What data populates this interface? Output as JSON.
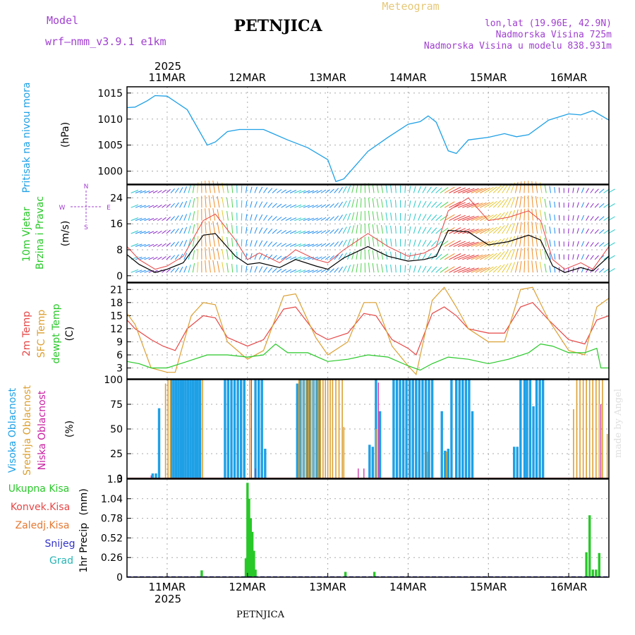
{
  "header": {
    "model_label": "Model",
    "model_name": "wrf–nmm_v3.9.1  e1km",
    "station": "PETNJICA",
    "title": "Meteogram",
    "lonlat": "lon,lat (19.96E, 42.9N)",
    "altitude": "Nadmorska Visina 725m",
    "model_altitude": "Nadmorska Visina u modelu 838.931m",
    "watermark": "made by Angel",
    "footer_station": "PETNJICA"
  },
  "x_axis": {
    "year": "2025",
    "day_labels": [
      "11MAR",
      "12MAR",
      "13MAR",
      "14MAR",
      "15MAR",
      "16MAR"
    ],
    "start_day": 10.5,
    "end_day": 16.5,
    "major_ticks": [
      11,
      12,
      13,
      14,
      15,
      16
    ]
  },
  "colors": {
    "pressure": "#1ea0e6",
    "temp2m": "#e64646",
    "sfc": "#dca032",
    "dewpt": "#28c828",
    "high_cloud": "#1ea0e6",
    "mid_cloud": "#dca032",
    "low_cloud": "#c81ea0",
    "precip": "#28c828",
    "snow": "#0000c8",
    "frame": "#000000",
    "grid": "#aaaaaa",
    "title_orange": "#e6c878",
    "purple": "#a040d0"
  },
  "chart_data": [
    {
      "type": "line",
      "title": "",
      "ylabel": "Pritisak na nivou mora",
      "unit": "(hPa)",
      "ylim": [
        997.5,
        1016.2
      ],
      "yticks": [
        1000,
        1005,
        1010,
        1015
      ],
      "series": [
        {
          "name": "Pritisak na nivou mora",
          "x": [
            10.5,
            10.6,
            10.75,
            10.85,
            11.0,
            11.25,
            11.5,
            11.6,
            11.75,
            11.9,
            12.0,
            12.2,
            12.5,
            12.75,
            13.0,
            13.1,
            13.2,
            13.5,
            13.75,
            14.0,
            14.15,
            14.25,
            14.35,
            14.5,
            14.6,
            14.75,
            15.0,
            15.2,
            15.35,
            15.5,
            15.75,
            16.0,
            16.15,
            16.3,
            16.5
          ],
          "values": [
            1012.2,
            1012.3,
            1013.5,
            1014.5,
            1014.4,
            1011.8,
            1005.0,
            1005.6,
            1007.6,
            1008.0,
            1008.0,
            1008.0,
            1006.0,
            1004.5,
            1002.2,
            998.0,
            998.5,
            1003.8,
            1006.5,
            1009.0,
            1009.5,
            1010.6,
            1009.4,
            1003.9,
            1003.4,
            1006.0,
            1006.5,
            1007.2,
            1006.6,
            1007.0,
            1009.8,
            1011.0,
            1010.8,
            1011.6,
            1009.8
          ]
        }
      ]
    },
    {
      "type": "line",
      "title": "",
      "ylabel": "10m Vjetar Brzina i Pravac",
      "unit": "(m/s)",
      "ylim": [
        -2,
        28
      ],
      "yticks": [
        0,
        8,
        16,
        24
      ],
      "direction_legend": [
        "N",
        "W",
        "E",
        "S"
      ],
      "series": [
        {
          "name": "10m Vjetar Brzina",
          "x": [
            10.5,
            10.65,
            10.85,
            11.0,
            11.2,
            11.45,
            11.6,
            11.85,
            12.0,
            12.15,
            12.4,
            12.6,
            12.85,
            13.0,
            13.2,
            13.5,
            13.75,
            14.0,
            14.2,
            14.35,
            14.5,
            14.75,
            15.0,
            15.25,
            15.5,
            15.65,
            15.8,
            15.95,
            16.15,
            16.3,
            16.5
          ],
          "values": [
            6.5,
            3.5,
            1.0,
            2.0,
            4.0,
            12.5,
            13.0,
            6.0,
            3.5,
            4.0,
            2.5,
            5.0,
            3.0,
            2.0,
            5.5,
            9.0,
            6.0,
            4.5,
            5.0,
            6.0,
            14.0,
            13.5,
            9.5,
            10.5,
            12.5,
            11.0,
            3.0,
            1.0,
            2.5,
            1.5,
            6.0
          ]
        },
        {
          "name": "Udari",
          "x": [
            10.5,
            10.65,
            10.85,
            11.0,
            11.2,
            11.45,
            11.6,
            11.85,
            12.0,
            12.15,
            12.4,
            12.6,
            12.85,
            13.0,
            13.2,
            13.5,
            13.75,
            14.0,
            14.2,
            14.35,
            14.5,
            14.75,
            15.0,
            15.25,
            15.5,
            15.65,
            15.8,
            15.95,
            16.15,
            16.3,
            16.5
          ],
          "values": [
            9.0,
            5.0,
            2.0,
            3.0,
            6.0,
            17.0,
            19.0,
            11.0,
            5.0,
            7.0,
            4.0,
            8.0,
            5.0,
            4.0,
            8.0,
            13.0,
            9.0,
            6.0,
            7.0,
            9.0,
            20.0,
            24.0,
            17.0,
            18.0,
            20.0,
            17.0,
            5.0,
            2.0,
            4.0,
            2.0,
            9.0
          ]
        }
      ]
    },
    {
      "type": "line",
      "title": "",
      "ylabel": "2m Temp / SFC Temp / dewpt Temp",
      "unit": "(C)",
      "ylim": [
        0.5,
        22.5
      ],
      "yticks": [
        3,
        6,
        9,
        12,
        15,
        18,
        21
      ],
      "series": [
        {
          "name": "2m Temp",
          "x": [
            10.5,
            10.6,
            10.8,
            10.95,
            11.1,
            11.25,
            11.45,
            11.6,
            11.75,
            12.0,
            12.2,
            12.45,
            12.6,
            12.85,
            13.0,
            13.25,
            13.45,
            13.6,
            13.8,
            14.0,
            14.1,
            14.3,
            14.45,
            14.6,
            14.75,
            15.0,
            15.2,
            15.4,
            15.55,
            15.75,
            16.0,
            16.2,
            16.35,
            16.5
          ],
          "values": [
            14.0,
            12.0,
            9.5,
            8.0,
            7.0,
            12.0,
            15.0,
            14.5,
            10.0,
            8.0,
            9.5,
            16.5,
            17.0,
            11.0,
            9.5,
            11.0,
            15.5,
            15.0,
            9.5,
            7.5,
            6.0,
            15.5,
            17.0,
            15.0,
            12.0,
            11.0,
            11.0,
            17.0,
            18.0,
            14.0,
            9.5,
            8.5,
            14.0,
            15.0
          ]
        },
        {
          "name": "SFC Temp",
          "x": [
            10.5,
            10.6,
            10.8,
            11.0,
            11.1,
            11.3,
            11.45,
            11.6,
            11.75,
            12.0,
            12.2,
            12.45,
            12.6,
            12.85,
            13.0,
            13.25,
            13.45,
            13.6,
            13.8,
            14.0,
            14.1,
            14.3,
            14.45,
            14.6,
            14.75,
            15.0,
            15.2,
            15.4,
            15.55,
            15.75,
            16.0,
            16.2,
            16.35,
            16.5
          ],
          "values": [
            15.5,
            13.0,
            3.0,
            2.0,
            2.0,
            15.0,
            18.0,
            17.5,
            9.0,
            5.0,
            7.0,
            19.5,
            20.0,
            10.0,
            6.0,
            9.0,
            18.0,
            18.0,
            8.0,
            3.5,
            1.5,
            18.5,
            21.5,
            17.0,
            12.0,
            9.0,
            9.0,
            21.0,
            21.5,
            14.0,
            7.0,
            6.0,
            17.0,
            19.0
          ]
        },
        {
          "name": "dewpt Temp",
          "x": [
            10.5,
            10.65,
            10.8,
            11.0,
            11.25,
            11.5,
            11.75,
            12.0,
            12.2,
            12.35,
            12.5,
            12.75,
            13.0,
            13.25,
            13.5,
            13.75,
            14.0,
            14.15,
            14.3,
            14.5,
            14.75,
            15.0,
            15.25,
            15.5,
            15.65,
            15.8,
            16.0,
            16.2,
            16.35,
            16.4,
            16.5
          ],
          "values": [
            4.5,
            4.0,
            3.0,
            3.0,
            4.5,
            6.0,
            6.0,
            5.5,
            6.0,
            8.5,
            6.5,
            6.5,
            4.5,
            5.0,
            6.0,
            5.5,
            3.5,
            2.5,
            4.0,
            5.5,
            5.0,
            4.0,
            5.0,
            6.5,
            8.5,
            8.0,
            6.5,
            6.5,
            7.5,
            3.0,
            3.0
          ]
        }
      ]
    },
    {
      "type": "bar",
      "title": "",
      "ylabel": "Visoka Oblacnost / Srednja Oblacnost / Niska Oblacnost",
      "unit": "(%)",
      "ylim": [
        0,
        100
      ],
      "yticks": [
        0,
        25,
        50,
        75,
        100
      ],
      "series": [
        {
          "name": "Visoka Oblacnost",
          "x": [
            10.82,
            10.86,
            10.9,
            11.05,
            11.08,
            11.11,
            11.14,
            11.17,
            11.2,
            11.23,
            11.26,
            11.29,
            11.32,
            11.35,
            11.38,
            11.41,
            11.72,
            11.76,
            11.8,
            11.84,
            11.88,
            11.92,
            11.96,
            12.1,
            12.14,
            12.18,
            12.22,
            12.62,
            12.66,
            12.7,
            12.74,
            12.78,
            12.82,
            12.86,
            12.9,
            13.52,
            13.56,
            13.6,
            13.65,
            13.82,
            13.86,
            13.9,
            13.94,
            13.98,
            14.02,
            14.06,
            14.1,
            14.14,
            14.18,
            14.22,
            14.26,
            14.3,
            14.42,
            14.46,
            14.5,
            14.54,
            14.6,
            14.64,
            14.68,
            14.72,
            14.76,
            14.8,
            15.32,
            15.36,
            15.4,
            15.45,
            15.48,
            15.52,
            15.56,
            15.6,
            15.64,
            15.68
          ],
          "values": [
            5,
            5,
            71,
            100,
            100,
            100,
            100,
            100,
            100,
            100,
            100,
            100,
            100,
            100,
            100,
            100,
            100,
            100,
            100,
            100,
            100,
            100,
            100,
            100,
            100,
            100,
            30,
            96,
            100,
            100,
            100,
            100,
            100,
            100,
            100,
            34,
            32,
            100,
            68,
            100,
            100,
            100,
            100,
            100,
            100,
            100,
            100,
            100,
            100,
            100,
            100,
            100,
            68,
            28,
            30,
            100,
            100,
            100,
            100,
            100,
            100,
            68,
            32,
            32,
            100,
            100,
            100,
            100,
            73,
            100,
            100,
            100
          ]
        },
        {
          "name": "Srednja Oblacnost",
          "x": [
            10.98,
            11.01,
            11.04,
            11.44,
            12.03,
            12.64,
            12.67,
            12.7,
            12.73,
            12.76,
            12.79,
            12.82,
            12.85,
            12.88,
            12.91,
            12.94,
            12.97,
            13.0,
            13.03,
            13.06,
            13.1,
            13.14,
            13.18,
            13.2,
            13.6,
            14.24,
            14.48,
            16.06,
            16.1,
            16.14,
            16.18,
            16.22,
            16.26,
            16.3,
            16.34,
            16.38,
            16.42,
            16.48
          ],
          "values": [
            96,
            100,
            100,
            100,
            100,
            100,
            100,
            100,
            100,
            100,
            100,
            100,
            100,
            100,
            100,
            100,
            100,
            100,
            100,
            100,
            100,
            100,
            100,
            52,
            50,
            27,
            27,
            70,
            100,
            100,
            100,
            100,
            100,
            100,
            100,
            100,
            100,
            45
          ]
        },
        {
          "name": "Niska Oblacnost",
          "x": [
            10.8,
            12.05,
            12.1,
            13.38,
            13.45,
            13.63,
            16.4
          ],
          "values": [
            3,
            100,
            10,
            10,
            10,
            97,
            75
          ]
        }
      ]
    },
    {
      "type": "bar",
      "title": "",
      "ylabel": "1hr Precip",
      "unit": "(mm)",
      "ylim": [
        0,
        1.3
      ],
      "yticks": [
        0,
        0.26,
        0.52,
        0.78,
        1.04,
        1.3
      ],
      "legend": [
        "Ukupna Kisa",
        "Konvek.Kisa",
        "Zaledj.Kisa",
        "Snijeg",
        "Grad"
      ],
      "series": [
        {
          "name": "Ukupna Kisa",
          "x": [
            11.43,
            11.98,
            12.0,
            12.02,
            12.04,
            12.06,
            12.08,
            12.1,
            12.12,
            13.22,
            13.58,
            16.22,
            16.26,
            16.3,
            16.34,
            16.38
          ],
          "values": [
            0.09,
            0.25,
            1.25,
            1.04,
            0.78,
            0.6,
            0.35,
            0.1,
            0.0,
            0.07,
            0.07,
            0.33,
            0.82,
            0.1,
            0.1,
            0.32
          ]
        }
      ]
    }
  ]
}
